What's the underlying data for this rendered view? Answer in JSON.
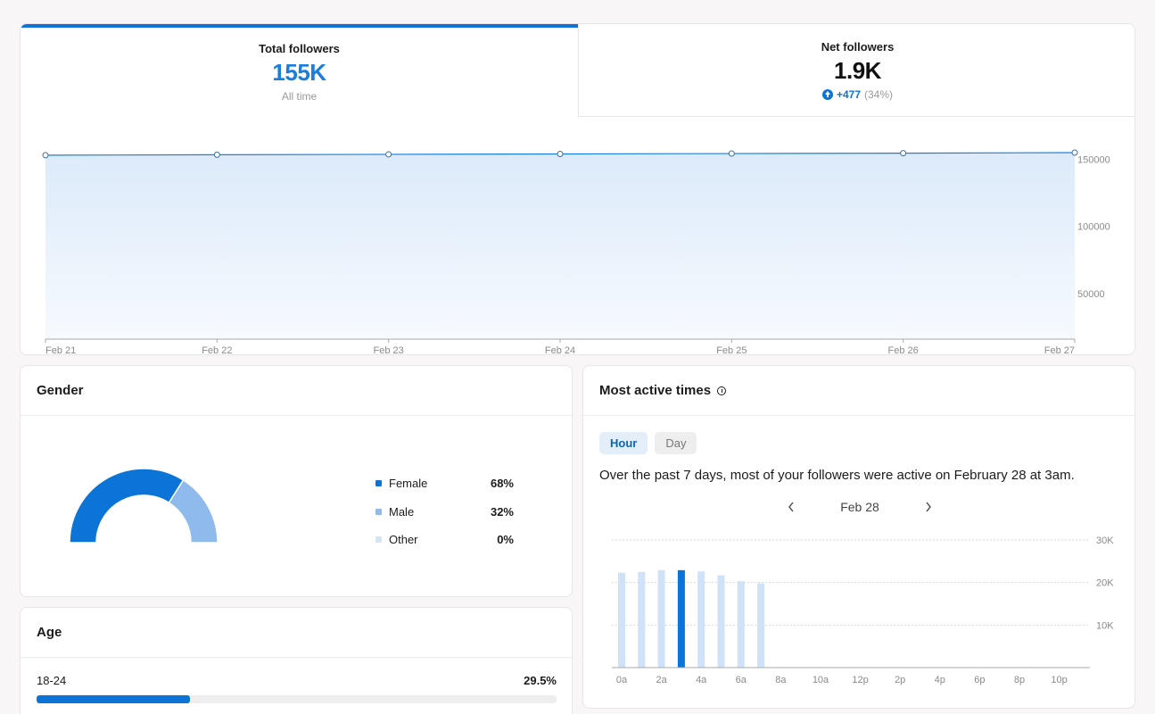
{
  "followers": {
    "tabs": [
      {
        "label": "Total followers",
        "value": "155K",
        "sub": "All time"
      },
      {
        "label": "Net followers",
        "value": "1.9K",
        "delta": "+477",
        "delta_pct": "(34%)"
      }
    ]
  },
  "chart_data": [
    {
      "type": "area",
      "categories": [
        "Feb 21",
        "Feb 22",
        "Feb 23",
        "Feb 24",
        "Feb 25",
        "Feb 26",
        "Feb 27"
      ],
      "values": [
        153100,
        153400,
        153700,
        154000,
        154300,
        154600,
        155000
      ],
      "y_ticks": [
        50000,
        100000,
        150000
      ],
      "ylim": [
        0,
        155000
      ],
      "grid": true,
      "color": "#1a7fdc"
    },
    {
      "type": "bar",
      "categories": [
        "0a",
        "1a",
        "2a",
        "3a",
        "4a",
        "5a",
        "6a",
        "7a",
        "8a",
        "9a",
        "10a",
        "11a",
        "12p",
        "1p",
        "2p",
        "3p",
        "4p",
        "5p",
        "6p",
        "7p",
        "8p",
        "9p",
        "10p",
        "11p"
      ],
      "tick_labels": [
        "0a",
        "2a",
        "4a",
        "6a",
        "8a",
        "10a",
        "12p",
        "2p",
        "4p",
        "6p",
        "8p",
        "10p"
      ],
      "values": [
        22300,
        22500,
        22900,
        22900,
        22600,
        21700,
        20300,
        19800,
        0,
        0,
        0,
        0,
        0,
        0,
        0,
        0,
        0,
        0,
        0,
        0,
        0,
        0,
        0,
        0
      ],
      "highlight_index": 3,
      "y_ticks": [
        "10K",
        "20K",
        "30K"
      ],
      "y_tick_values": [
        10000,
        20000,
        30000
      ],
      "ylim": [
        0,
        30000
      ],
      "colors": {
        "bar": "#cfe2f7",
        "highlight": "#0b74d6"
      }
    }
  ],
  "gender": {
    "title": "Gender",
    "items": [
      {
        "name": "Female",
        "value": "68%",
        "pct": 68,
        "color": "#0b74d6"
      },
      {
        "name": "Male",
        "value": "32%",
        "pct": 32,
        "color": "#8fbaec"
      },
      {
        "name": "Other",
        "value": "0%",
        "pct": 0,
        "color": "#d3e6f8"
      }
    ]
  },
  "age": {
    "title": "Age",
    "rows": [
      {
        "label": "18-24",
        "value": "29.5%",
        "pct": 29.5
      }
    ]
  },
  "active": {
    "title": "Most active times",
    "toggles": [
      "Hour",
      "Day"
    ],
    "summary": "Over the past 7 days, most of your followers were active on February 28 at 3am.",
    "date": "Feb 28"
  }
}
